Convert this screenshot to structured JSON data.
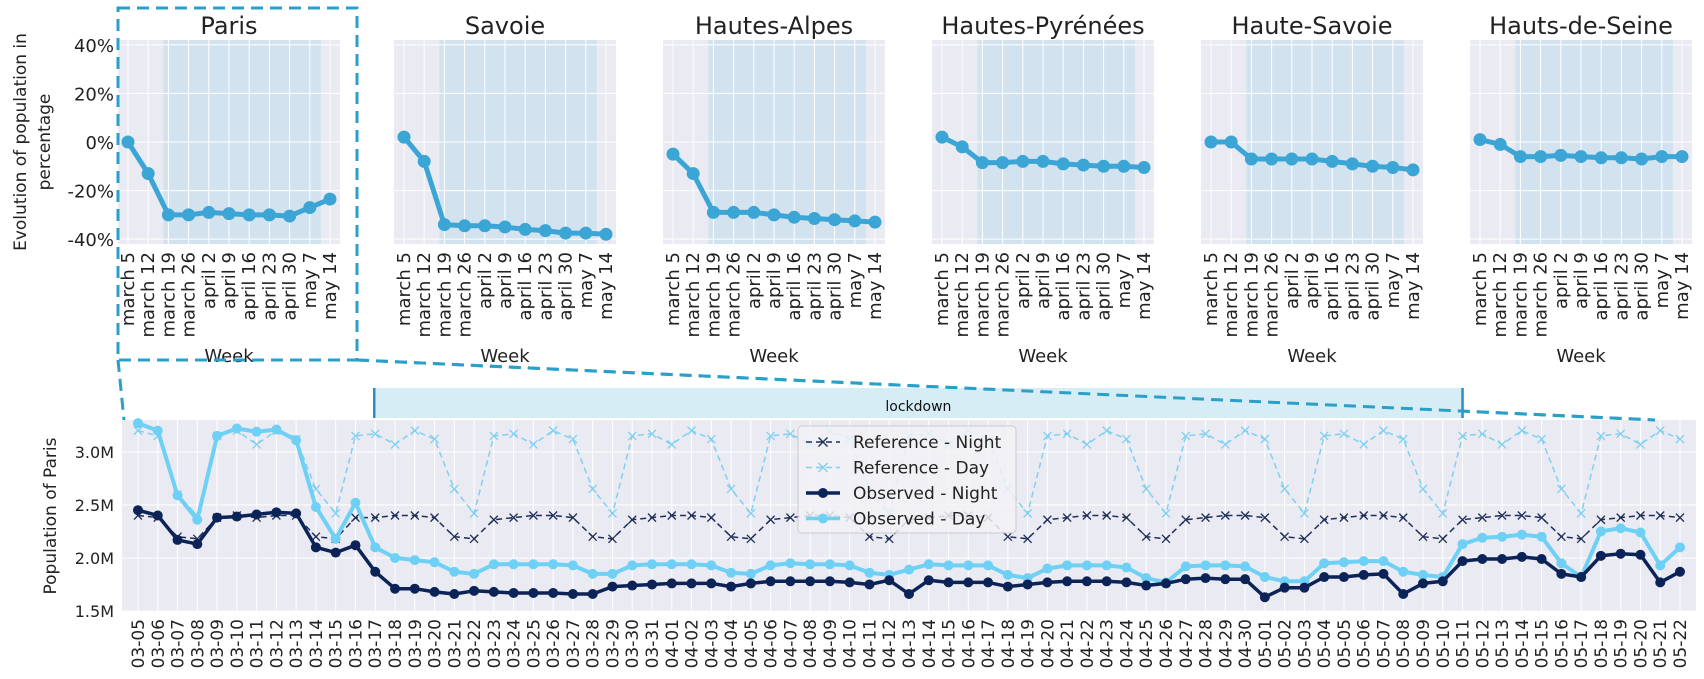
{
  "colors": {
    "observed_line": "#3ba5d6",
    "panel_bg": "#eaeaf2",
    "lockdown_shade": "#d2e3ef",
    "paris_highlight": "#2a9fc7",
    "lockdown_band": "#d6edf5",
    "ref_night": "#1f2f5a",
    "ref_day": "#7fd0f2",
    "obs_night": "#0b2357",
    "obs_day": "#6fd0f5"
  },
  "chart_data": [
    {
      "type": "line",
      "panels": [
        {
          "title": "Paris",
          "values": [
            0,
            -13,
            -30,
            -30,
            -29,
            -29.5,
            -30,
            -30,
            -30.5,
            -27,
            -23.5
          ]
        },
        {
          "title": "Savoie",
          "values": [
            2,
            -8,
            -34,
            -34.5,
            -34.5,
            -35,
            -36,
            -36.5,
            -37.5,
            -37.5,
            -38
          ]
        },
        {
          "title": "Hautes-Alpes",
          "values": [
            -5,
            -13,
            -29,
            -29,
            -29,
            -30,
            -31,
            -31.5,
            -32,
            -32.5,
            -33
          ]
        },
        {
          "title": "Hautes-Pyrénées",
          "values": [
            2,
            -2,
            -8.5,
            -8.5,
            -8,
            -8,
            -9,
            -9.5,
            -10,
            -10,
            -10.5
          ]
        },
        {
          "title": "Haute-Savoie",
          "values": [
            0,
            0,
            -7,
            -7,
            -7,
            -7,
            -8,
            -9,
            -10,
            -10.5,
            -11.5
          ]
        },
        {
          "title": "Hauts-de-Seine",
          "values": [
            1,
            -1,
            -6,
            -6,
            -5.5,
            -6,
            -6.5,
            -6.5,
            -7,
            -6,
            -6
          ]
        }
      ],
      "categories": [
        "march 5",
        "march 12",
        "march 19",
        "march 26",
        "april 2",
        "april 9",
        "april 16",
        "april 23",
        "april 30",
        "may 7",
        "may 14"
      ],
      "xlabel": "Week",
      "ylabel": "Evolution of population in percentage",
      "ylim": [
        -42,
        42
      ],
      "yticks": [
        40,
        20,
        0,
        -20,
        -40
      ],
      "ytick_labels": [
        "40%",
        "20%",
        "0%",
        "-20%",
        "-40%"
      ],
      "lockdown_shading_weeks": [
        "march 17",
        "may 11"
      ]
    },
    {
      "type": "line",
      "ylabel": "Population of Paris",
      "dates": [
        "03-05",
        "03-06",
        "03-07",
        "03-08",
        "03-09",
        "03-10",
        "03-11",
        "03-12",
        "03-13",
        "03-14",
        "03-15",
        "03-16",
        "03-17",
        "03-18",
        "03-19",
        "03-20",
        "03-21",
        "03-22",
        "03-23",
        "03-24",
        "03-25",
        "03-26",
        "03-27",
        "03-28",
        "03-29",
        "03-30",
        "03-31",
        "04-01",
        "04-02",
        "04-03",
        "04-04",
        "04-05",
        "04-06",
        "04-07",
        "04-08",
        "04-09",
        "04-10",
        "04-11",
        "04-12",
        "04-13",
        "04-14",
        "04-15",
        "04-16",
        "04-17",
        "04-18",
        "04-19",
        "04-20",
        "04-21",
        "04-22",
        "04-23",
        "04-24",
        "04-25",
        "04-26",
        "04-27",
        "04-28",
        "04-29",
        "04-30",
        "05-01",
        "05-02",
        "05-03",
        "05-04",
        "05-05",
        "05-06",
        "05-07",
        "05-08",
        "05-09",
        "05-10",
        "05-11",
        "05-12",
        "05-13",
        "05-14",
        "05-15",
        "05-16",
        "05-17",
        "05-18",
        "05-19",
        "05-20",
        "05-21",
        "05-22"
      ],
      "ylim": [
        1.5,
        3.3
      ],
      "yticks": [
        1.5,
        2.0,
        2.5,
        3.0
      ],
      "ytick_labels": [
        "1.5M",
        "2.0M",
        "2.5M",
        "3.0M"
      ],
      "annotation": {
        "text": "lockdown",
        "start": "03-17",
        "end": "05-11"
      },
      "series": [
        {
          "name": "Reference - Night",
          "style": "dashed-x",
          "color": "#1f2f5a",
          "values": [
            2.4,
            2.38,
            2.2,
            2.18,
            2.38,
            2.4,
            2.38,
            2.4,
            2.4,
            2.2,
            2.18,
            2.38,
            2.38,
            2.4,
            2.4,
            2.38,
            2.2,
            2.18,
            2.36,
            2.38,
            2.4,
            2.4,
            2.38,
            2.2,
            2.18,
            2.36,
            2.38,
            2.4,
            2.4,
            2.38,
            2.2,
            2.18,
            2.36,
            2.38,
            2.4,
            2.4,
            2.38,
            2.2,
            2.18,
            2.36,
            2.38,
            2.4,
            2.4,
            2.38,
            2.2,
            2.18,
            2.36,
            2.38,
            2.4,
            2.4,
            2.38,
            2.2,
            2.18,
            2.36,
            2.38,
            2.4,
            2.4,
            2.38,
            2.2,
            2.18,
            2.36,
            2.38,
            2.4,
            2.4,
            2.38,
            2.2,
            2.18,
            2.36,
            2.38,
            2.4,
            2.4,
            2.38,
            2.2,
            2.18,
            2.36,
            2.38,
            2.4,
            2.4,
            2.38
          ]
        },
        {
          "name": "Reference - Day",
          "style": "dashed-x",
          "color": "#7fd0f2",
          "values": [
            3.2,
            3.15,
            2.6,
            2.4,
            3.15,
            3.2,
            3.07,
            3.2,
            3.12,
            2.65,
            2.42,
            3.15,
            3.17,
            3.07,
            3.2,
            3.12,
            2.65,
            2.42,
            3.15,
            3.17,
            3.07,
            3.2,
            3.12,
            2.65,
            2.42,
            3.15,
            3.17,
            3.07,
            3.2,
            3.12,
            2.65,
            2.42,
            3.15,
            3.17,
            3.07,
            3.2,
            3.12,
            2.65,
            2.42,
            3.15,
            3.17,
            3.07,
            3.2,
            3.12,
            2.65,
            2.42,
            3.15,
            3.17,
            3.07,
            3.2,
            3.12,
            2.65,
            2.42,
            3.15,
            3.17,
            3.07,
            3.2,
            3.12,
            2.65,
            2.42,
            3.15,
            3.17,
            3.07,
            3.2,
            3.12,
            2.65,
            2.42,
            3.15,
            3.17,
            3.07,
            3.2,
            3.12,
            2.65,
            2.42,
            3.15,
            3.17,
            3.07,
            3.2,
            3.12
          ]
        },
        {
          "name": "Observed - Night",
          "style": "solid-dot",
          "color": "#0b2357",
          "values": [
            2.45,
            2.4,
            2.17,
            2.13,
            2.38,
            2.39,
            2.41,
            2.43,
            2.42,
            2.1,
            2.05,
            2.12,
            1.87,
            1.71,
            1.71,
            1.68,
            1.66,
            1.69,
            1.68,
            1.67,
            1.67,
            1.67,
            1.66,
            1.66,
            1.73,
            1.74,
            1.75,
            1.76,
            1.76,
            1.76,
            1.73,
            1.76,
            1.78,
            1.78,
            1.78,
            1.78,
            1.77,
            1.75,
            1.79,
            1.66,
            1.79,
            1.77,
            1.77,
            1.77,
            1.73,
            1.75,
            1.77,
            1.78,
            1.78,
            1.78,
            1.77,
            1.74,
            1.76,
            1.8,
            1.81,
            1.8,
            1.8,
            1.63,
            1.72,
            1.72,
            1.82,
            1.82,
            1.84,
            1.85,
            1.66,
            1.76,
            1.78,
            1.97,
            1.99,
            1.99,
            2.01,
            1.99,
            1.85,
            1.82,
            2.02,
            2.04,
            2.03,
            1.77,
            1.87
          ]
        },
        {
          "name": "Observed - Day",
          "style": "solid-dot",
          "color": "#6fd0f5",
          "values": [
            3.27,
            3.2,
            2.59,
            2.36,
            3.15,
            3.22,
            3.19,
            3.21,
            3.11,
            2.48,
            2.18,
            2.52,
            2.1,
            2.0,
            1.98,
            1.96,
            1.87,
            1.85,
            1.94,
            1.94,
            1.94,
            1.94,
            1.93,
            1.85,
            1.85,
            1.93,
            1.94,
            1.94,
            1.94,
            1.93,
            1.86,
            1.85,
            1.93,
            1.95,
            1.94,
            1.94,
            1.93,
            1.86,
            1.84,
            1.89,
            1.94,
            1.93,
            1.93,
            1.93,
            1.84,
            1.81,
            1.9,
            1.93,
            1.93,
            1.93,
            1.91,
            1.81,
            1.77,
            1.92,
            1.93,
            1.93,
            1.92,
            1.82,
            1.78,
            1.78,
            1.95,
            1.96,
            1.97,
            1.97,
            1.87,
            1.84,
            1.82,
            2.13,
            2.19,
            2.2,
            2.22,
            2.2,
            1.95,
            1.82,
            2.25,
            2.28,
            2.24,
            1.93,
            2.1
          ]
        }
      ]
    }
  ]
}
